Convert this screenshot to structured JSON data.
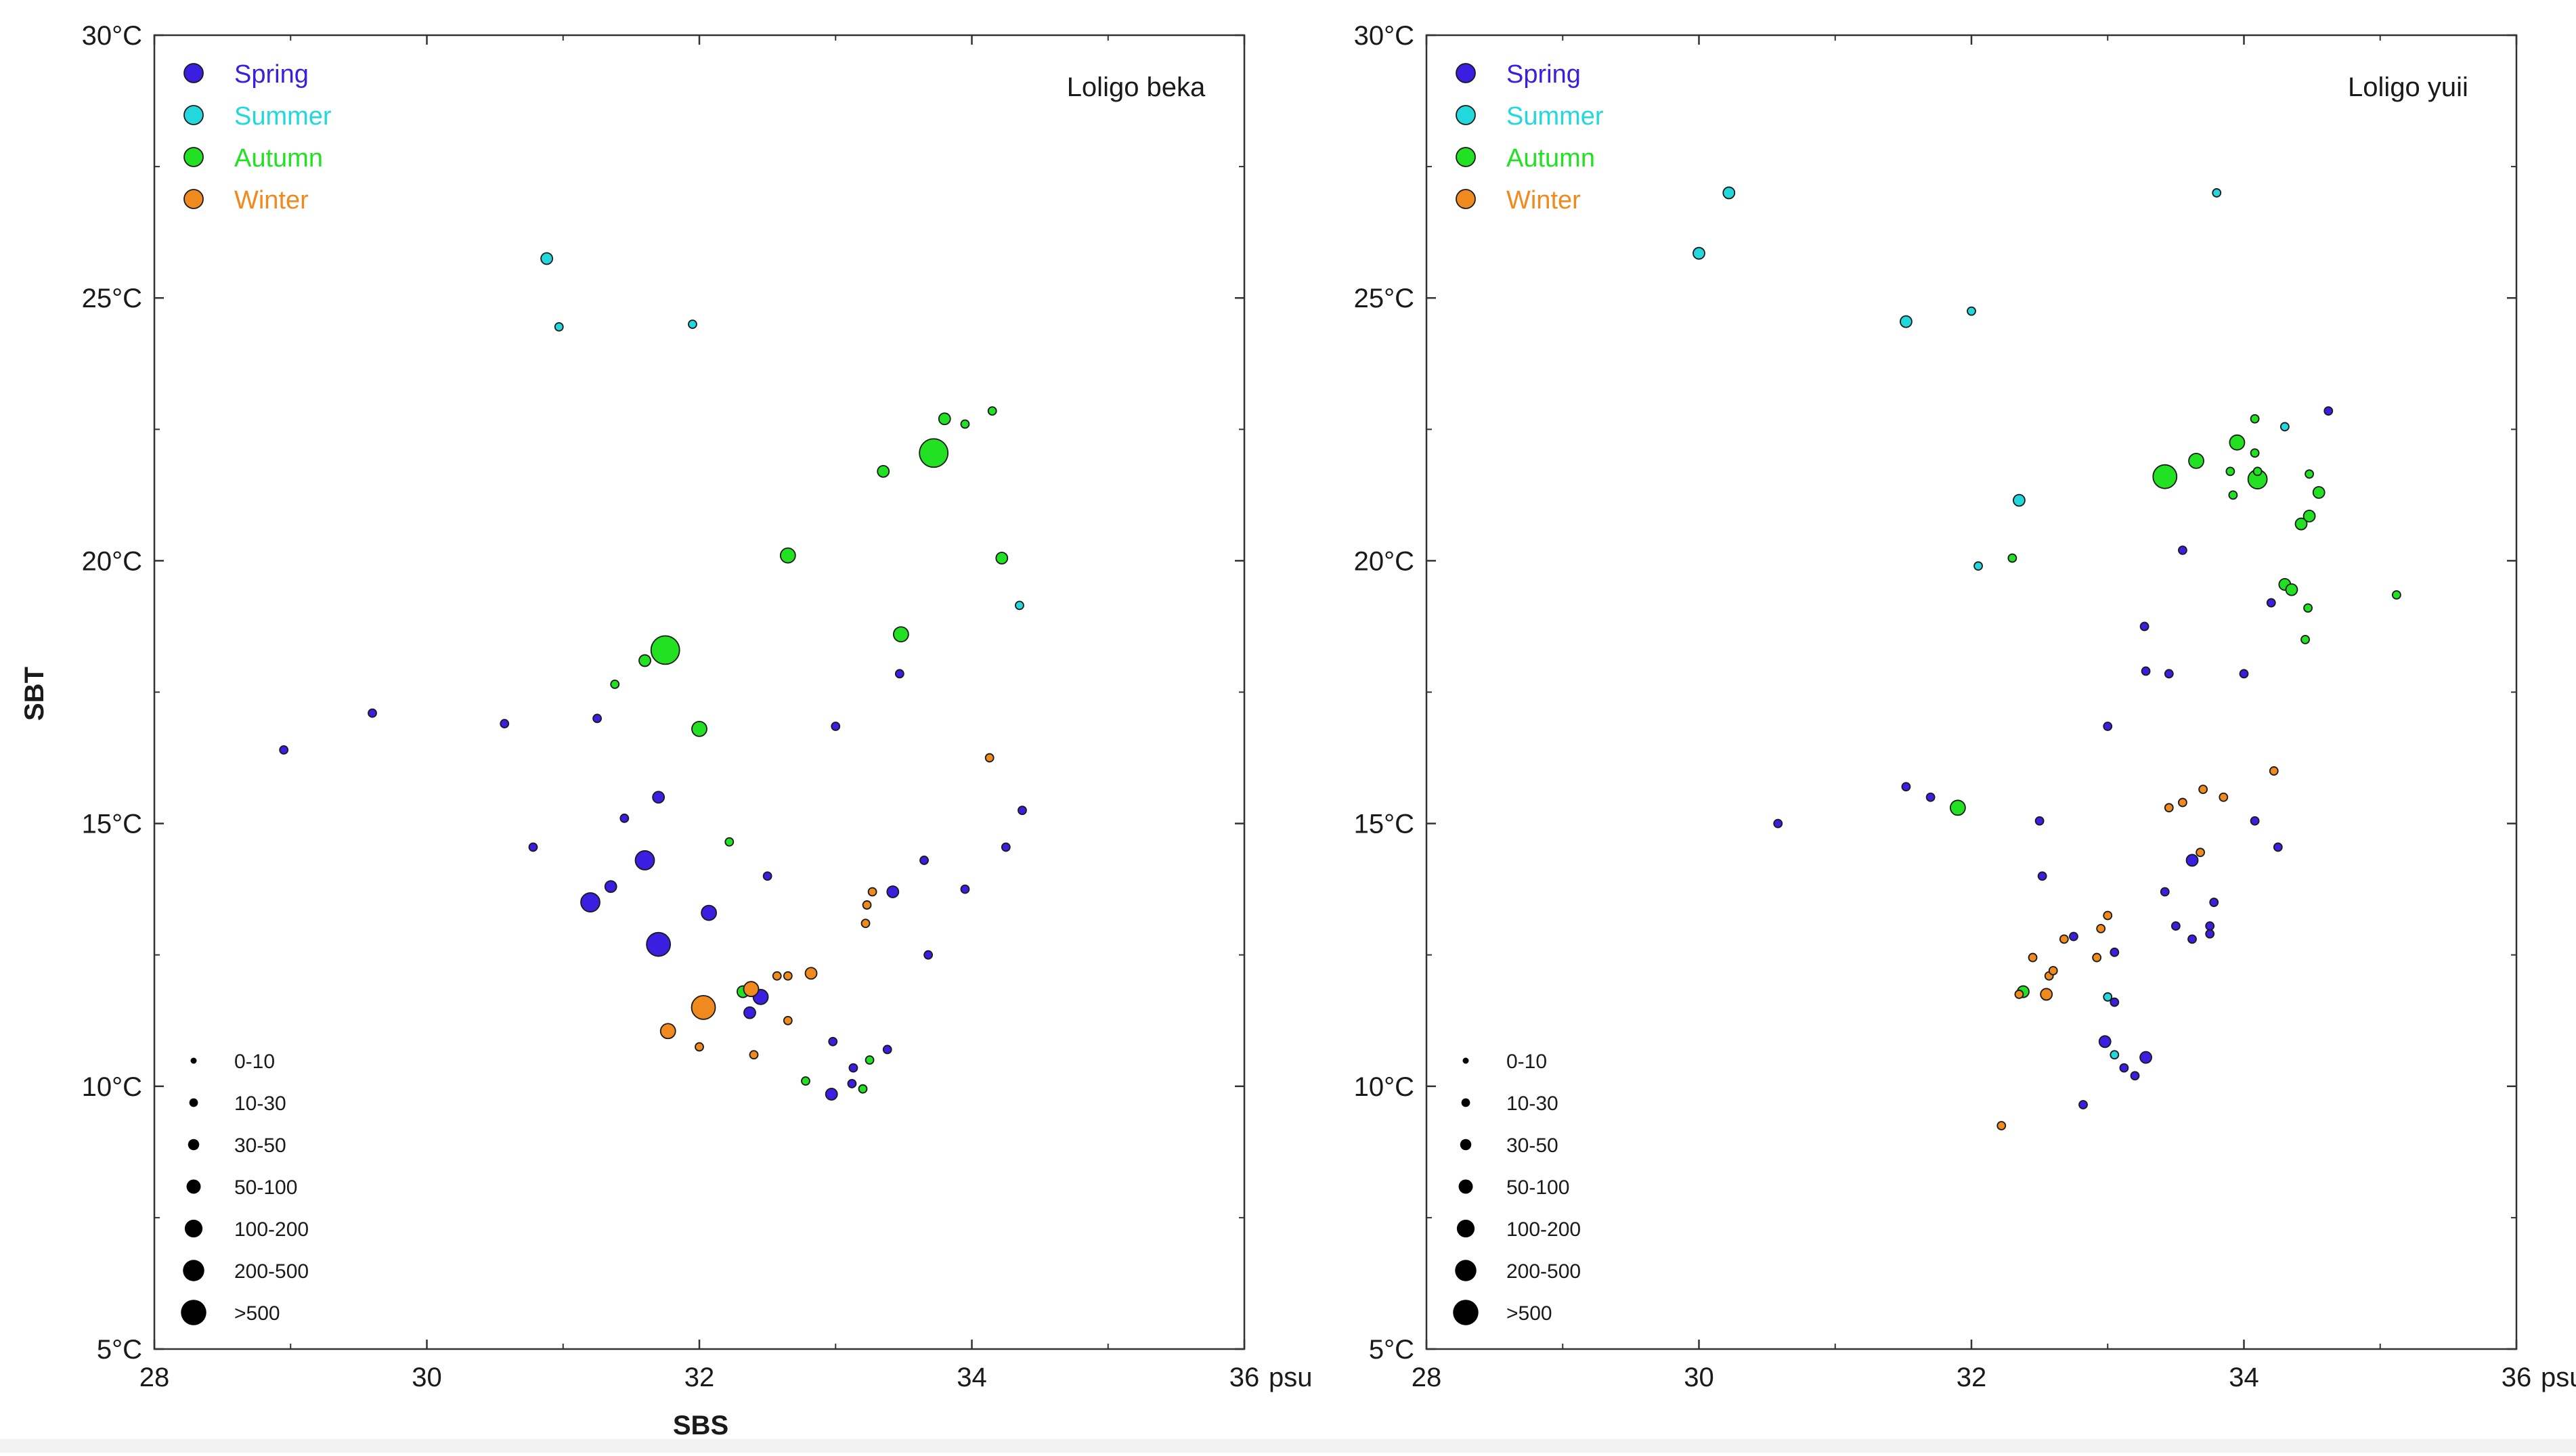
{
  "figure": {
    "shared_xlabel": "SBS",
    "shared_ylabel": "SBT"
  },
  "colors": {
    "Spring": "#3a1fe0",
    "Summer": "#22d8dc",
    "Autumn": "#22e022",
    "Winter": "#f08a1e",
    "outline": "#1a1a1a",
    "frame": "#333333",
    "text": "#1a1a1a"
  },
  "chart_data": [
    {
      "type": "scatter",
      "title": "Loligo beka",
      "xlabel": "SBS",
      "ylabel": "SBT",
      "x_unit": "psu",
      "xlim": [
        28,
        36
      ],
      "ylim": [
        5,
        30
      ],
      "xticks": [
        "28",
        "30",
        "32",
        "34",
        "36"
      ],
      "yticks": [
        "5°C",
        "10°C",
        "15°C",
        "20°C",
        "25°C",
        "30°C"
      ],
      "legend_seasons": [
        "Spring",
        "Summer",
        "Autumn",
        "Winter"
      ],
      "legend_sizes": [
        "0-10",
        "10-30",
        "30-50",
        "50-100",
        "100-200",
        "200-500",
        ">500"
      ],
      "series": [
        {
          "name": "Spring",
          "points": [
            [
              28.95,
              16.4,
              1
            ],
            [
              29.6,
              17.1,
              1
            ],
            [
              30.57,
              16.9,
              1
            ],
            [
              30.78,
              14.55,
              1
            ],
            [
              31.25,
              17.0,
              1
            ],
            [
              31.2,
              13.5,
              4
            ],
            [
              31.35,
              13.8,
              2
            ],
            [
              31.45,
              15.1,
              1
            ],
            [
              31.6,
              14.3,
              4
            ],
            [
              31.7,
              15.5,
              2
            ],
            [
              31.7,
              12.7,
              5
            ],
            [
              32.07,
              13.3,
              3
            ],
            [
              32.37,
              11.4,
              2
            ],
            [
              32.45,
              11.7,
              3
            ],
            [
              32.5,
              14.0,
              1
            ],
            [
              32.97,
              9.85,
              2
            ],
            [
              32.98,
              10.85,
              1
            ],
            [
              33.0,
              16.85,
              1
            ],
            [
              33.12,
              10.05,
              1
            ],
            [
              33.13,
              10.35,
              1
            ],
            [
              33.38,
              10.7,
              1
            ],
            [
              33.42,
              13.7,
              2
            ],
            [
              33.47,
              17.85,
              1
            ],
            [
              33.65,
              14.3,
              1
            ],
            [
              33.68,
              12.5,
              1
            ],
            [
              33.95,
              13.75,
              1
            ],
            [
              34.25,
              14.55,
              1
            ],
            [
              34.37,
              15.25,
              1
            ]
          ]
        },
        {
          "name": "Summer",
          "points": [
            [
              30.88,
              25.75,
              2
            ],
            [
              30.97,
              24.45,
              1
            ],
            [
              31.95,
              24.5,
              1
            ],
            [
              34.35,
              19.15,
              1
            ]
          ]
        },
        {
          "name": "Autumn",
          "points": [
            [
              31.38,
              17.65,
              1
            ],
            [
              31.6,
              18.1,
              2
            ],
            [
              31.75,
              18.3,
              6
            ],
            [
              32.0,
              16.8,
              3
            ],
            [
              32.22,
              14.65,
              1
            ],
            [
              32.32,
              11.8,
              2
            ],
            [
              32.65,
              20.1,
              3
            ],
            [
              32.78,
              10.1,
              1
            ],
            [
              33.2,
              9.95,
              1
            ],
            [
              33.25,
              10.5,
              1
            ],
            [
              33.35,
              21.7,
              2
            ],
            [
              33.48,
              18.6,
              3
            ],
            [
              33.72,
              22.05,
              6
            ],
            [
              33.8,
              22.7,
              2
            ],
            [
              33.95,
              22.6,
              1
            ],
            [
              34.15,
              22.85,
              1
            ],
            [
              34.22,
              20.05,
              2
            ]
          ]
        },
        {
          "name": "Winter",
          "points": [
            [
              31.77,
              11.05,
              3
            ],
            [
              32.0,
              10.75,
              1
            ],
            [
              32.03,
              11.5,
              5
            ],
            [
              32.38,
              11.85,
              3
            ],
            [
              32.4,
              10.6,
              1
            ],
            [
              32.57,
              12.1,
              1
            ],
            [
              32.65,
              12.1,
              1
            ],
            [
              32.65,
              11.25,
              1
            ],
            [
              32.82,
              12.15,
              2
            ],
            [
              33.22,
              13.1,
              1
            ],
            [
              33.23,
              13.45,
              1
            ],
            [
              33.27,
              13.7,
              1
            ],
            [
              34.13,
              16.25,
              1
            ]
          ]
        }
      ]
    },
    {
      "type": "scatter",
      "title": "Loligo yuii",
      "xlabel": "SBS",
      "ylabel": "SBT",
      "x_unit": "psu",
      "xlim": [
        28,
        36
      ],
      "ylim": [
        5,
        30
      ],
      "xticks": [
        "28",
        "30",
        "32",
        "34",
        "36"
      ],
      "yticks": [
        "5°C",
        "10°C",
        "15°C",
        "20°C",
        "25°C",
        "30°C"
      ],
      "legend_seasons": [
        "Spring",
        "Summer",
        "Autumn",
        "Winter"
      ],
      "legend_sizes": [
        "0-10",
        "10-30",
        "30-50",
        "50-100",
        "100-200",
        "200-500",
        ">500"
      ],
      "series": [
        {
          "name": "Spring",
          "points": [
            [
              30.58,
              15.0,
              1
            ],
            [
              31.52,
              15.7,
              1
            ],
            [
              31.7,
              15.5,
              1
            ],
            [
              32.5,
              15.05,
              1
            ],
            [
              32.52,
              14.0,
              1
            ],
            [
              32.75,
              12.85,
              1
            ],
            [
              32.82,
              9.65,
              1
            ],
            [
              32.98,
              10.85,
              2
            ],
            [
              33.0,
              16.85,
              1
            ],
            [
              33.05,
              11.6,
              1
            ],
            [
              33.05,
              12.55,
              1
            ],
            [
              33.12,
              10.35,
              1
            ],
            [
              33.2,
              10.2,
              1
            ],
            [
              33.27,
              18.75,
              1
            ],
            [
              33.28,
              17.9,
              1
            ],
            [
              33.28,
              10.55,
              2
            ],
            [
              33.42,
              13.7,
              1
            ],
            [
              33.45,
              17.85,
              1
            ],
            [
              33.55,
              20.2,
              1
            ],
            [
              33.5,
              13.05,
              1
            ],
            [
              33.62,
              12.8,
              1
            ],
            [
              33.62,
              14.3,
              2
            ],
            [
              33.75,
              13.05,
              1
            ],
            [
              33.75,
              12.9,
              1
            ],
            [
              33.78,
              13.5,
              1
            ],
            [
              34.0,
              17.85,
              1
            ],
            [
              34.08,
              15.05,
              1
            ],
            [
              34.2,
              19.2,
              1
            ],
            [
              34.25,
              14.55,
              1
            ],
            [
              34.62,
              22.85,
              1
            ]
          ]
        },
        {
          "name": "Summer",
          "points": [
            [
              30.0,
              25.85,
              2
            ],
            [
              30.22,
              27.0,
              2
            ],
            [
              31.52,
              24.55,
              2
            ],
            [
              32.0,
              24.75,
              1
            ],
            [
              32.05,
              19.9,
              1
            ],
            [
              32.35,
              21.15,
              2
            ],
            [
              33.0,
              11.7,
              1
            ],
            [
              33.05,
              10.6,
              1
            ],
            [
              33.8,
              27.0,
              1
            ],
            [
              34.3,
              22.55,
              1
            ]
          ]
        },
        {
          "name": "Autumn",
          "points": [
            [
              31.9,
              15.3,
              3
            ],
            [
              32.3,
              20.05,
              1
            ],
            [
              32.38,
              11.8,
              2
            ],
            [
              33.42,
              21.6,
              5
            ],
            [
              33.65,
              21.9,
              3
            ],
            [
              33.9,
              21.7,
              1
            ],
            [
              33.92,
              21.25,
              1
            ],
            [
              33.95,
              22.25,
              3
            ],
            [
              34.08,
              22.7,
              1
            ],
            [
              34.08,
              22.05,
              1
            ],
            [
              34.1,
              21.55,
              4
            ],
            [
              34.1,
              21.7,
              1
            ],
            [
              34.3,
              19.55,
              2
            ],
            [
              34.35,
              19.45,
              2
            ],
            [
              34.42,
              20.7,
              2
            ],
            [
              34.45,
              18.5,
              1
            ],
            [
              34.47,
              19.1,
              1
            ],
            [
              34.48,
              20.85,
              2
            ],
            [
              34.48,
              21.65,
              1
            ],
            [
              34.55,
              21.3,
              2
            ],
            [
              35.12,
              19.35,
              1
            ]
          ]
        },
        {
          "name": "Winter",
          "points": [
            [
              32.22,
              9.25,
              1
            ],
            [
              32.35,
              11.75,
              1
            ],
            [
              32.45,
              12.45,
              1
            ],
            [
              32.55,
              11.75,
              2
            ],
            [
              32.57,
              12.1,
              1
            ],
            [
              32.6,
              12.2,
              1
            ],
            [
              32.68,
              12.8,
              1
            ],
            [
              32.92,
              12.45,
              1
            ],
            [
              32.95,
              13.0,
              1
            ],
            [
              33.0,
              13.25,
              1
            ],
            [
              33.45,
              15.3,
              1
            ],
            [
              33.55,
              15.4,
              1
            ],
            [
              33.68,
              14.45,
              1
            ],
            [
              33.7,
              15.65,
              1
            ],
            [
              33.85,
              15.5,
              1
            ],
            [
              34.22,
              16.0,
              1
            ]
          ]
        }
      ]
    }
  ]
}
